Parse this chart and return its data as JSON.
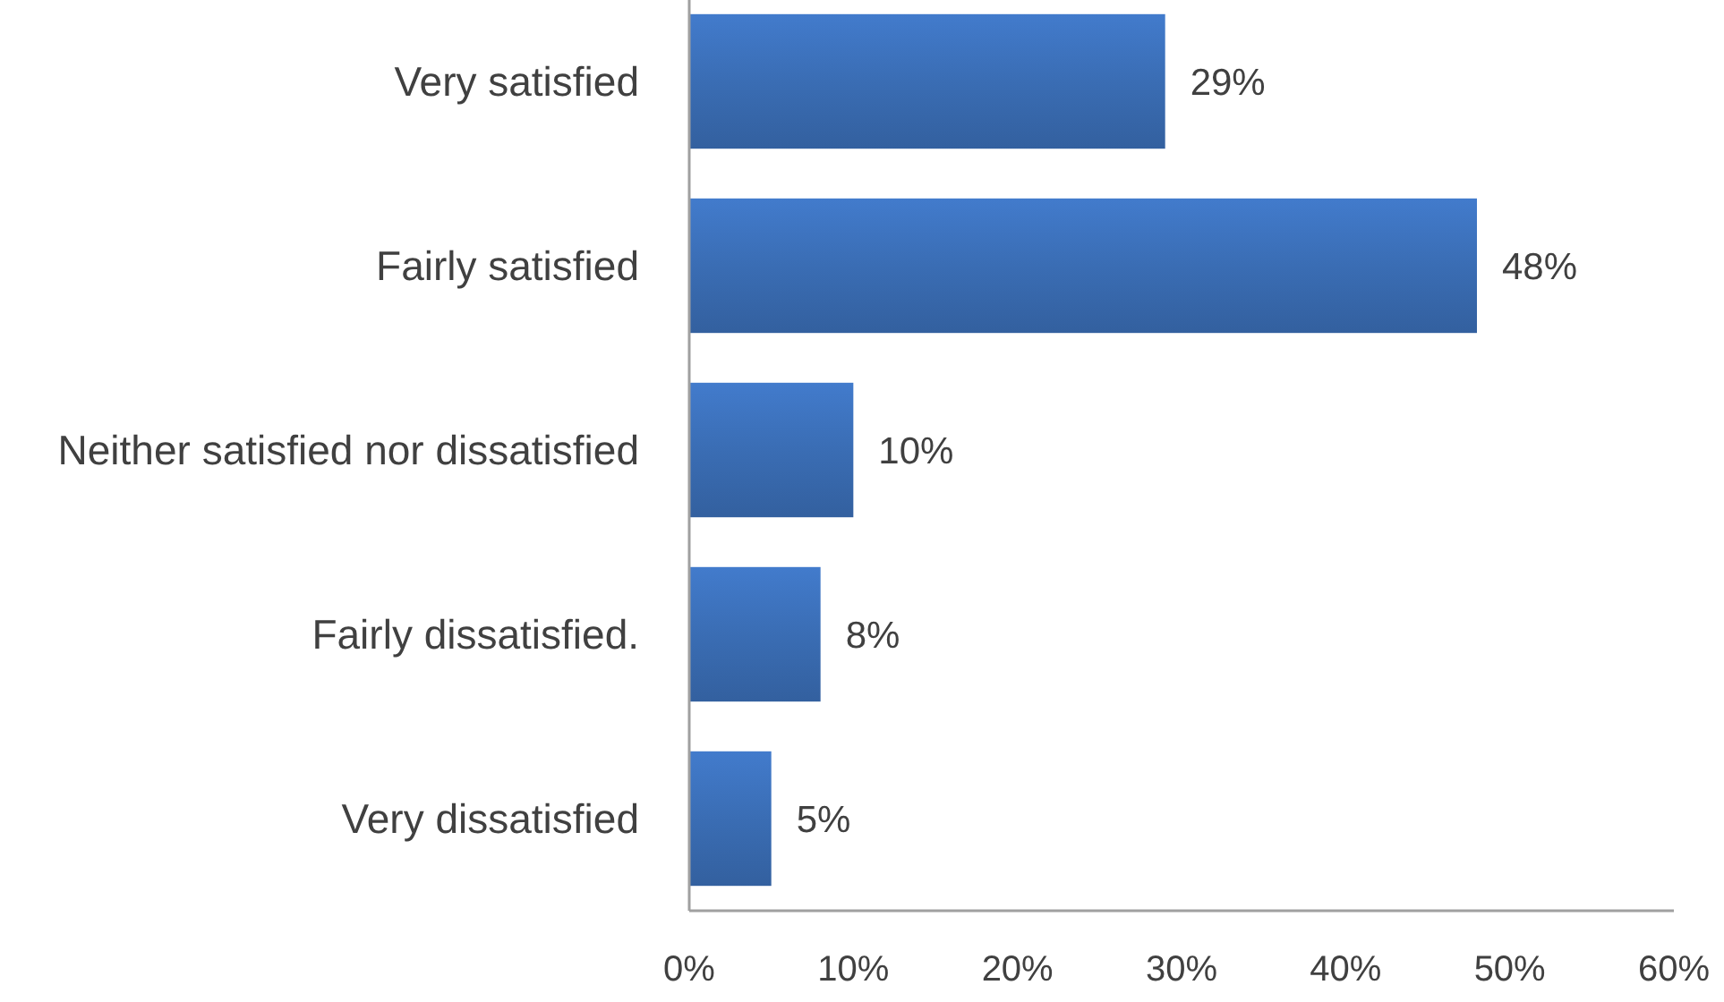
{
  "chart_data": {
    "type": "bar",
    "orientation": "horizontal",
    "categories": [
      "Very satisfied",
      "Fairly satisfied",
      "Neither satisfied nor dissatisfied",
      "Fairly dissatisfied.",
      "Very dissatisfied"
    ],
    "values": [
      29,
      48,
      10,
      8,
      5
    ],
    "color": "#3a6db4",
    "value_labels": [
      "29%",
      "48%",
      "10%",
      "8%",
      "5%"
    ],
    "xlim": [
      0,
      60
    ],
    "xticks": [
      {
        "value": 0,
        "label": "0%"
      },
      {
        "value": 10,
        "label": "10%"
      },
      {
        "value": 20,
        "label": "20%"
      },
      {
        "value": 30,
        "label": "30%"
      },
      {
        "value": 40,
        "label": "40%"
      },
      {
        "value": 50,
        "label": "50%"
      },
      {
        "value": 60,
        "label": "60%"
      }
    ]
  }
}
